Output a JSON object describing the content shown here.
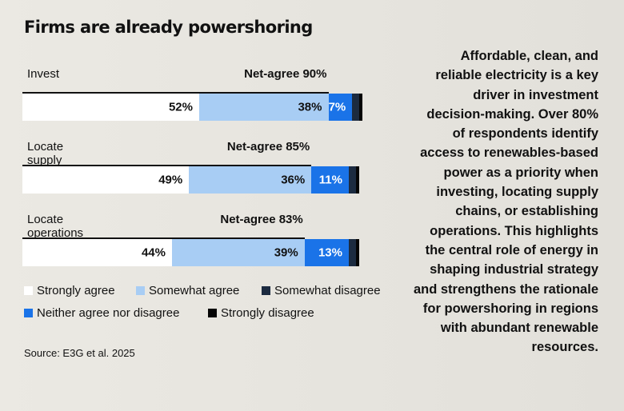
{
  "title": "Firms are already powershoring",
  "colors": {
    "strongly_agree": "#ffffff",
    "somewhat_agree": "#a8cdf4",
    "neither": "#1a73e8",
    "somewhat_disagree": "#1c2b40",
    "strongly_disagree": "#050505"
  },
  "chart_data": {
    "type": "bar",
    "stacked": true,
    "orientation": "horizontal",
    "categories": [
      "Invest",
      "Locate supply chains",
      "Locate operations"
    ],
    "net_labels": [
      "Net-agree 90%",
      "Net-agree 85%",
      "Net-agree 83%"
    ],
    "net_agree": [
      90,
      85,
      83
    ],
    "series": [
      {
        "name": "Strongly agree",
        "values": [
          52,
          49,
          44
        ],
        "labels": [
          "52%",
          "49%",
          "44%"
        ],
        "color": "#ffffff"
      },
      {
        "name": "Somewhat agree",
        "values": [
          38,
          36,
          39
        ],
        "labels": [
          "38%",
          "36%",
          "39%"
        ],
        "color": "#a8cdf4"
      },
      {
        "name": "Neither agree nor disagree",
        "values": [
          7,
          11,
          13
        ],
        "labels": [
          "7%",
          "11%",
          "13%"
        ],
        "color": "#1a73e8"
      },
      {
        "name": "Somewhat disagree",
        "values": [
          2,
          2,
          2
        ],
        "labels": [
          "",
          "",
          ""
        ],
        "color": "#1c2b40"
      },
      {
        "name": "Strongly disagree",
        "values": [
          1,
          1,
          1
        ],
        "labels": [
          "",
          "",
          ""
        ],
        "color": "#050505"
      }
    ],
    "xlim": [
      0,
      100
    ],
    "grid": false,
    "legend_position": "bottom"
  },
  "legend": [
    {
      "label": "Strongly agree",
      "color": "#ffffff"
    },
    {
      "label": "Somewhat agree",
      "color": "#a8cdf4"
    },
    {
      "label": "Somewhat disagree",
      "color": "#1c2b40"
    },
    {
      "label": "Neither agree nor disagree",
      "color": "#1a73e8"
    },
    {
      "label": "Strongly disagree",
      "color": "#050505"
    }
  ],
  "source": "Source: E3G et al. 2025",
  "side_text": "Affordable, clean, and reliable electricity is a key driver in investment decision-making. Over 80% of respondents identify access to renewables-based power as a priority when investing, locating supply chains, or establishing operations. This highlights the central role of energy in shaping industrial strategy and strengthens the rationale for powershoring in regions with abundant renewable resources."
}
